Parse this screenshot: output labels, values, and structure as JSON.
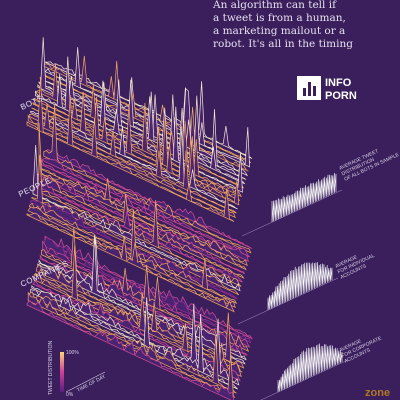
{
  "header": {
    "lines": [
      "An algorithm can tell if",
      "a tweet is from a human,",
      "a marketing mailout or a",
      "robot. It's all in the timing"
    ]
  },
  "logo": {
    "line1": "INFO",
    "line2": "PORN"
  },
  "sections": [
    {
      "label": "BOTS",
      "note": [
        "AVERAGE TWEET",
        "DISTRIBUTION",
        "OF ALL BOTS IN SAMPLE"
      ]
    },
    {
      "label": "PEOPLE",
      "note": [
        "AVERAGE",
        "FOR INDIVIDUAL",
        "ACCOUNTS"
      ]
    },
    {
      "label": "COMPANIES",
      "note": [
        "AVERAGE",
        "FOR CORPORATE",
        "ACCOUNTS"
      ]
    }
  ],
  "key": {
    "y_label": "TWEET DISTRIBUTION",
    "x_label": "TIME OF DAY",
    "top": "100%",
    "bottom": "0%"
  },
  "watermark": "zone"
}
